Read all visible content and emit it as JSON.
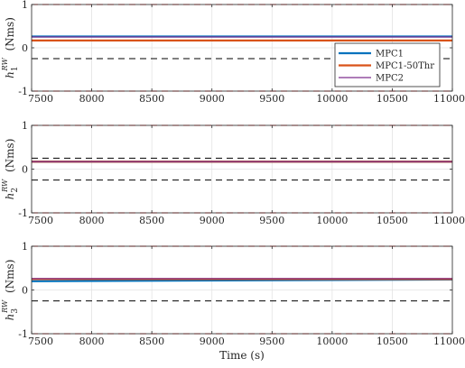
{
  "chart_data": [
    {
      "type": "line",
      "ylabel_main": "h",
      "ylabel_sup": "RW",
      "ylabel_sub": "1",
      "ylabel_unit": "(Nms)",
      "xlim": [
        7500,
        11000
      ],
      "ylim": [
        -1,
        1
      ],
      "xticks": [
        "7500",
        "8000",
        "8500",
        "9000",
        "9500",
        "10000",
        "10500",
        "11000"
      ],
      "yticks": [
        "-1",
        "0",
        "1"
      ],
      "grid": true,
      "legend_placement": "right",
      "series": [
        {
          "name": "MPC1",
          "color": "#0072BD",
          "x": [
            7500,
            11000
          ],
          "y": [
            0.26,
            0.26
          ]
        },
        {
          "name": "MPC1-50Thr",
          "color": "#D95319",
          "x": [
            7500,
            11000
          ],
          "y": [
            0.17,
            0.17
          ]
        },
        {
          "name": "MPC2",
          "color": "#7E2F8E",
          "x": [
            7500,
            11000
          ],
          "y": [
            0.25,
            0.25
          ]
        }
      ],
      "limits": [
        {
          "color": "#FF0000",
          "y": 1
        },
        {
          "color": "#FF0000",
          "y": -1
        },
        {
          "color": "#000000",
          "y": 0.25
        },
        {
          "color": "#000000",
          "y": -0.25
        }
      ]
    },
    {
      "type": "line",
      "ylabel_main": "h",
      "ylabel_sup": "RW",
      "ylabel_sub": "2",
      "ylabel_unit": "(Nms)",
      "xlim": [
        7500,
        11000
      ],
      "ylim": [
        -1,
        1
      ],
      "xticks": [
        "7500",
        "8000",
        "8500",
        "9000",
        "9500",
        "10000",
        "10500",
        "11000"
      ],
      "yticks": [
        "-1",
        "0",
        "1"
      ],
      "grid": true,
      "series": [
        {
          "color": "#0072BD",
          "x": [
            7500,
            11000
          ],
          "y": [
            0.17,
            0.17
          ]
        },
        {
          "color": "#D95319",
          "x": [
            7500,
            11000
          ],
          "y": [
            0.17,
            0.17
          ]
        },
        {
          "color": "#7E2F8E",
          "x": [
            7500,
            11000
          ],
          "y": [
            0.17,
            0.17
          ]
        }
      ],
      "limits": [
        {
          "color": "#FF0000",
          "y": 1
        },
        {
          "color": "#FF0000",
          "y": -1
        },
        {
          "color": "#000000",
          "y": 0.25
        },
        {
          "color": "#000000",
          "y": -0.25
        }
      ]
    },
    {
      "type": "line",
      "ylabel_main": "h",
      "ylabel_sup": "RW",
      "ylabel_sub": "3",
      "ylabel_unit": "(Nms)",
      "xlabel": "Time (s)",
      "xlim": [
        7500,
        11000
      ],
      "ylim": [
        -1,
        1
      ],
      "xticks": [
        "7500",
        "8000",
        "8500",
        "9000",
        "9500",
        "10000",
        "10500",
        "11000"
      ],
      "yticks": [
        "-1",
        "0",
        "1"
      ],
      "grid": true,
      "series": [
        {
          "color": "#0072BD",
          "x": [
            7500,
            11000
          ],
          "y": [
            0.2,
            0.24
          ]
        },
        {
          "color": "#D95319",
          "x": [
            7500,
            11000
          ],
          "y": [
            0.25,
            0.25
          ]
        },
        {
          "color": "#7E2F8E",
          "x": [
            7500,
            11000
          ],
          "y": [
            0.26,
            0.26
          ]
        }
      ],
      "limits": [
        {
          "color": "#FF0000",
          "y": 1
        },
        {
          "color": "#FF0000",
          "y": -1
        },
        {
          "color": "#000000",
          "y": 0.25
        },
        {
          "color": "#000000",
          "y": -0.25
        }
      ]
    }
  ]
}
